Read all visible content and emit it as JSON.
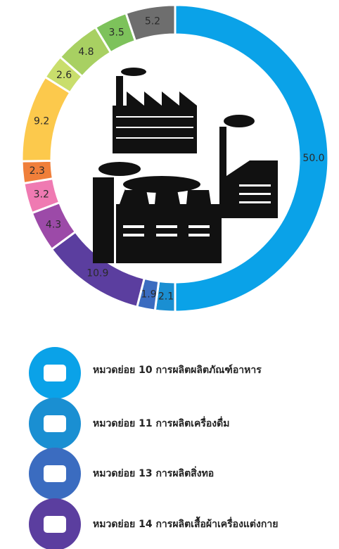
{
  "chart_data": {
    "type": "donut",
    "categories": [
      null,
      null,
      null,
      null,
      null,
      null,
      null,
      null,
      null,
      null,
      null,
      null
    ],
    "values": [
      50.0,
      2.1,
      1.9,
      10.9,
      4.3,
      3.2,
      2.3,
      9.2,
      2.6,
      4.8,
      3.5,
      5.2
    ],
    "value_labels": [
      "50.0",
      "2.1",
      "1.9",
      "10.9",
      "4.3",
      "3.2",
      "2.3",
      "9.2",
      "2.6",
      "4.8",
      "3.5",
      "5.2"
    ],
    "colors": [
      "#0aa2e8",
      "#1a8fd2",
      "#3b6cc0",
      "#5b3e9f",
      "#9c4aa8",
      "#ef7ab2",
      "#f07f3a",
      "#fcc94c",
      "#c9de6c",
      "#a8d062",
      "#7dc25b",
      "#6e6e6e"
    ]
  },
  "legend": [
    {
      "label": "หมวดย่อย 10  การผลิตผลิตภัณฑ์อาหาร",
      "color": "#0aa2e8"
    },
    {
      "label": "หมวดย่อย 11  การผลิตเครื่องดื่ม",
      "color": "#1a8fd2"
    },
    {
      "label": "หมวดย่อย 13  การผลิตสิ่งทอ",
      "color": "#3b6cc0"
    },
    {
      "label": "หมวดย่อย 14  การผลิตเสื้อผ้าเครื่องแต่งกาย",
      "color": "#5b3e9f"
    }
  ]
}
